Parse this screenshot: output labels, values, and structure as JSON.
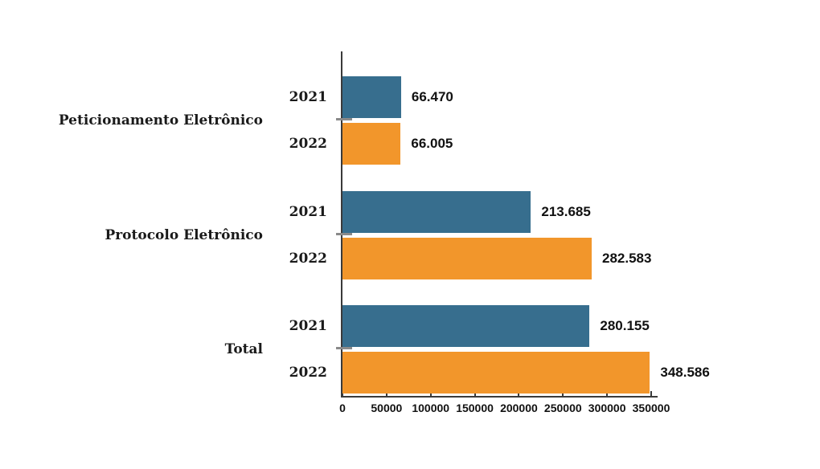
{
  "chart_data": {
    "type": "bar",
    "orientation": "horizontal",
    "title": "",
    "categories": [
      "Peticionamento Eletrônico",
      "Protocolo Eletrônico",
      "Total"
    ],
    "series": [
      {
        "name": "2021",
        "color": "#376E8E",
        "values": [
          66470,
          213685,
          280155
        ],
        "value_labels": [
          "66.470",
          "213.685",
          "280.155"
        ]
      },
      {
        "name": "2022",
        "color": "#F2962B",
        "values": [
          66005,
          282583,
          348586
        ],
        "value_labels": [
          "66.005",
          "282.583",
          "348.586"
        ]
      }
    ],
    "x_axis": {
      "min": 0,
      "max": 350000,
      "tick_interval": 50000,
      "tick_labels": [
        "0",
        "50000",
        "100000",
        "150000",
        "200000",
        "250000",
        "300000",
        "350000"
      ]
    },
    "legend": "none",
    "grid": false
  },
  "colors": {
    "axis": "#3A3A3A",
    "category_tick": "#8A8A8A",
    "text": "#111111",
    "background": "#FFFFFF"
  }
}
